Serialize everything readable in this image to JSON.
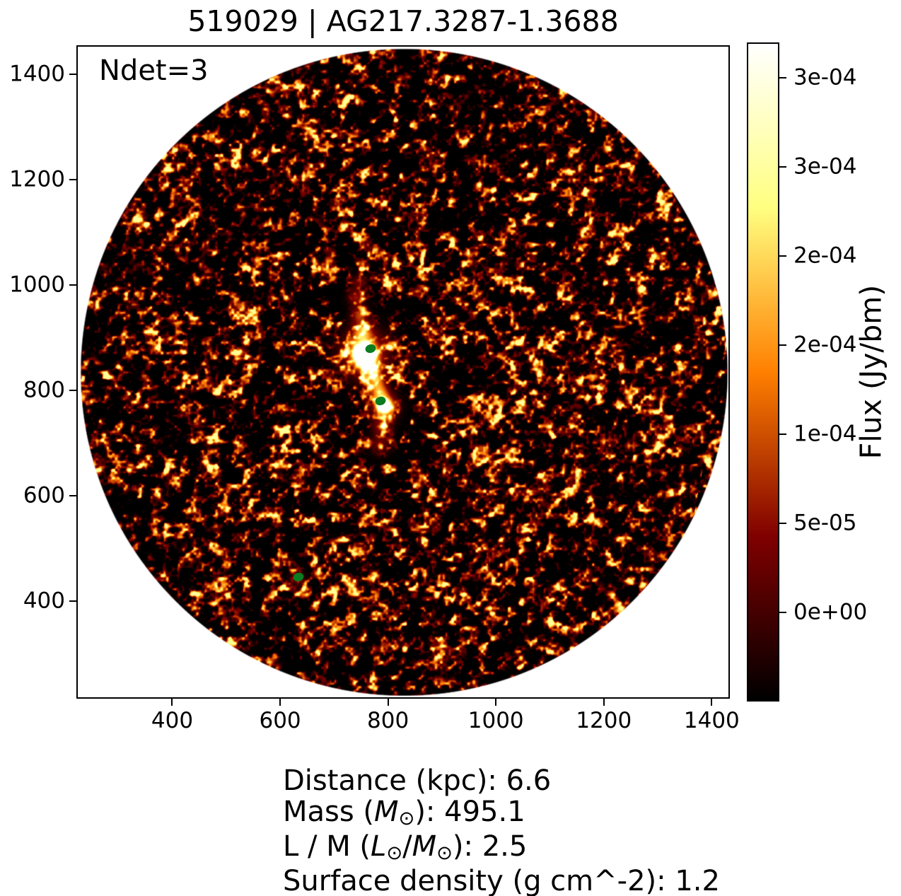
{
  "title": "519029 | AG217.3287-1.3688",
  "annotation": "Ndet=3",
  "chart_data": {
    "type": "heatmap",
    "title": "519029 | AG217.3287-1.3688",
    "xlabel": "",
    "ylabel": "",
    "xlim": [
      225,
      1431
    ],
    "ylim": [
      217,
      1452
    ],
    "x_ticks": [
      400,
      600,
      800,
      1000,
      1200,
      1400
    ],
    "y_ticks": [
      400,
      600,
      800,
      1000,
      1200,
      1400
    ],
    "grid": false,
    "annotation": "Ndet=3",
    "n_detections": 3,
    "detections": [
      {
        "x": 765,
        "y": 882
      },
      {
        "x": 783,
        "y": 782
      },
      {
        "x": 632,
        "y": 448
      }
    ],
    "marker_color": "#0b7c1f",
    "image_field": "circular flux map, afmhot colormap noise with bright central source",
    "colorbar": {
      "label": "Flux (Jy/bm)",
      "colormap": "afmhot",
      "vmin": -5e-05,
      "vmax": 0.00032,
      "ticks": [
        {
          "value": 0.0003,
          "label": "3e-04"
        },
        {
          "value": 0.00025,
          "label": "3e-04"
        },
        {
          "value": 0.0002,
          "label": "2e-04"
        },
        {
          "value": 0.00015,
          "label": "2e-04"
        },
        {
          "value": 0.0001,
          "label": "1e-04"
        },
        {
          "value": 5e-05,
          "label": "5e-05"
        },
        {
          "value": 0.0,
          "label": "0e+00"
        }
      ]
    }
  },
  "info_lines": [
    {
      "segments": [
        {
          "t": "Distance (kpc): 6.6"
        }
      ]
    },
    {
      "segments": [
        {
          "t": "Mass ("
        },
        {
          "t": "M",
          "style": "it"
        },
        {
          "t": "⊙",
          "style": "sub"
        },
        {
          "t": "): 495.1"
        }
      ]
    },
    {
      "segments": [
        {
          "t": "L / M ("
        },
        {
          "t": "L",
          "style": "it"
        },
        {
          "t": "⊙",
          "style": "sub"
        },
        {
          "t": "/"
        },
        {
          "t": "M",
          "style": "it"
        },
        {
          "t": "⊙",
          "style": "sub"
        },
        {
          "t": "): 2.5"
        }
      ]
    },
    {
      "segments": [
        {
          "t": "Surface density (g cm^-2): 1.2"
        }
      ]
    }
  ]
}
